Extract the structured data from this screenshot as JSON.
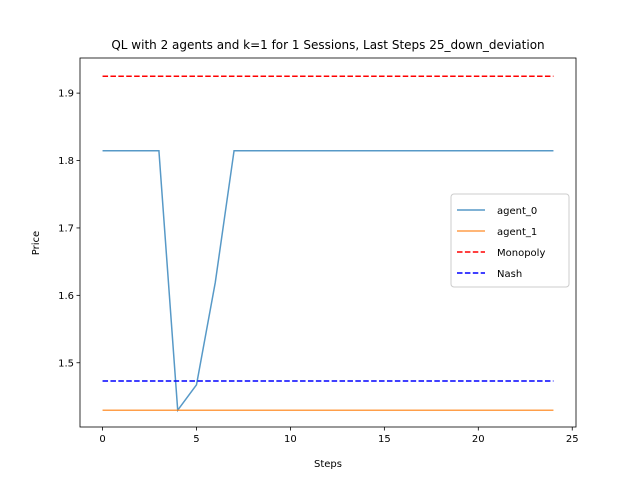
{
  "chart_data": {
    "type": "line",
    "title": "QL with 2 agents and k=1 for 1 Sessions, Last Steps 25_down_deviation",
    "xlabel": "Steps",
    "ylabel": "Price",
    "xlim": [
      -1.2,
      25.2
    ],
    "ylim": [
      1.4047,
      1.9521
    ],
    "xticks": [
      0,
      5,
      10,
      15,
      20,
      25
    ],
    "yticks": [
      1.5,
      1.6,
      1.7,
      1.8,
      1.9
    ],
    "grid": false,
    "legend_position": "center-right",
    "x": [
      0,
      1,
      2,
      3,
      4,
      5,
      6,
      7,
      8,
      9,
      10,
      11,
      12,
      13,
      14,
      15,
      16,
      17,
      18,
      19,
      20,
      21,
      22,
      23,
      24
    ],
    "series": [
      {
        "name": "agent_0",
        "color": "#1f77b4",
        "style": "solid",
        "values": [
          1.8146,
          1.8146,
          1.8146,
          1.8146,
          1.4296,
          1.4672,
          1.619,
          1.8146,
          1.8146,
          1.8146,
          1.8146,
          1.8146,
          1.8146,
          1.8146,
          1.8146,
          1.8146,
          1.8146,
          1.8146,
          1.8146,
          1.8146,
          1.8146,
          1.8146,
          1.8146,
          1.8146,
          1.8146
        ]
      },
      {
        "name": "agent_1",
        "color": "#ff7f0e",
        "style": "solid",
        "values": [
          1.4296,
          1.4296,
          1.4296,
          1.4296,
          1.4296,
          1.4296,
          1.4296,
          1.4296,
          1.4296,
          1.4296,
          1.4296,
          1.4296,
          1.4296,
          1.4296,
          1.4296,
          1.4296,
          1.4296,
          1.4296,
          1.4296,
          1.4296,
          1.4296,
          1.4296,
          1.4296,
          1.4296,
          1.4296
        ]
      },
      {
        "name": "Monopoly",
        "color": "#ff0000",
        "style": "dashed",
        "values": [
          1.925,
          1.925,
          1.925,
          1.925,
          1.925,
          1.925,
          1.925,
          1.925,
          1.925,
          1.925,
          1.925,
          1.925,
          1.925,
          1.925,
          1.925,
          1.925,
          1.925,
          1.925,
          1.925,
          1.925,
          1.925,
          1.925,
          1.925,
          1.925,
          1.925
        ]
      },
      {
        "name": "Nash",
        "color": "#0000ff",
        "style": "dashed",
        "values": [
          1.4729,
          1.4729,
          1.4729,
          1.4729,
          1.4729,
          1.4729,
          1.4729,
          1.4729,
          1.4729,
          1.4729,
          1.4729,
          1.4729,
          1.4729,
          1.4729,
          1.4729,
          1.4729,
          1.4729,
          1.4729,
          1.4729,
          1.4729,
          1.4729,
          1.4729,
          1.4729,
          1.4729,
          1.4729
        ]
      }
    ]
  }
}
